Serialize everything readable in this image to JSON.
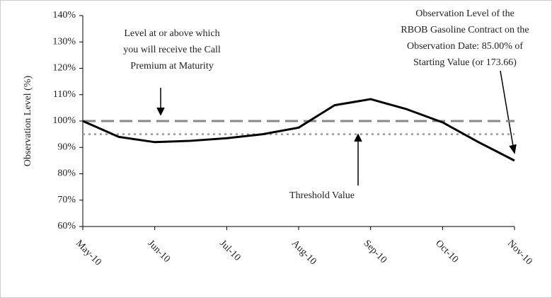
{
  "chart_data": {
    "type": "line",
    "y_label": "Observation Level (%)",
    "categories": [
      "May-10",
      null,
      "Jun-10",
      null,
      "Jul-10",
      null,
      "Aug-10",
      null,
      "Sep-10",
      null,
      "Oct-10",
      null,
      "Nov-10"
    ],
    "series": [
      {
        "color": "#000000",
        "values": [
          100,
          94,
          92,
          92.5,
          93.5,
          95,
          97.5,
          106,
          108.3,
          104.5,
          99.5,
          92,
          85
        ]
      }
    ],
    "ylim": [
      60,
      140
    ],
    "yticks": [
      {
        "value": 60,
        "label": "60%"
      },
      {
        "value": 70,
        "label": "70%"
      },
      {
        "value": 80,
        "label": "80%"
      },
      {
        "value": 90,
        "label": "90%"
      },
      {
        "value": 100,
        "label": "100%"
      },
      {
        "value": 110,
        "label": "110%"
      },
      {
        "value": 120,
        "label": "120%"
      },
      {
        "value": 130,
        "label": "130%"
      },
      {
        "value": 140,
        "label": "140%"
      }
    ],
    "reference_lines": [
      {
        "value": 100,
        "color": "#888888",
        "style": "dashed"
      },
      {
        "value": 95,
        "color": "#999999",
        "style": "dotted"
      }
    ],
    "annotations": [
      {
        "lines": [
          "Level at or above which",
          "you will receive the Call",
          "Premium at Maturity"
        ]
      },
      {
        "lines": [
          "Threshold Value"
        ]
      },
      {
        "lines": [
          "Observation Level of the",
          "RBOB Gasoline Contract on the",
          "Observation Date: 85.00% of",
          "Starting Value (or 173.66)"
        ]
      }
    ]
  }
}
